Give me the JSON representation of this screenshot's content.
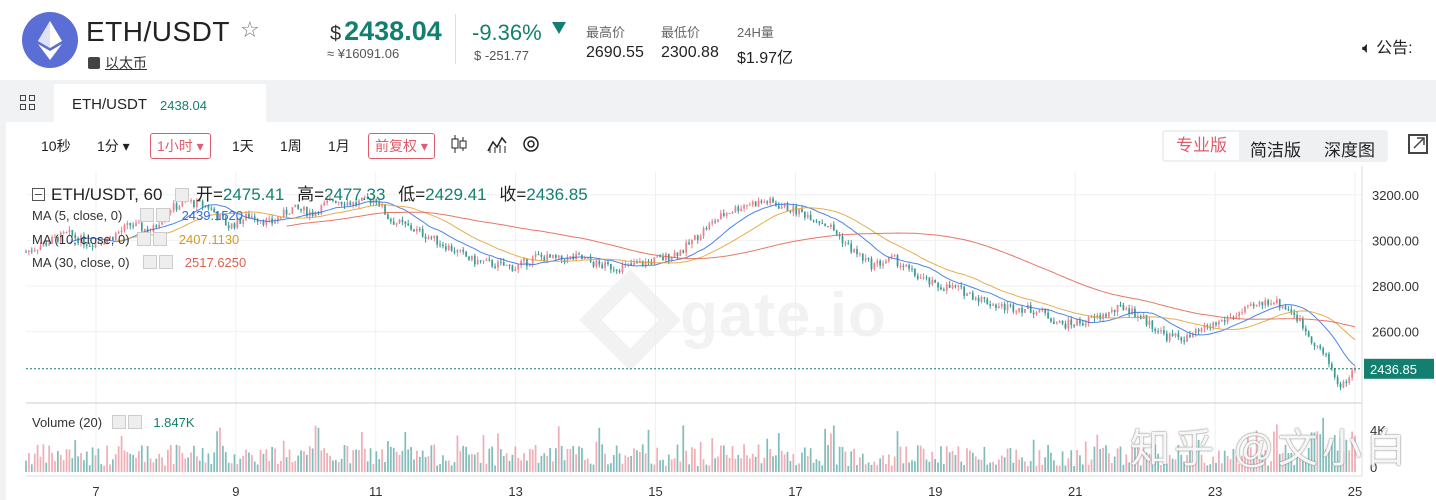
{
  "header": {
    "pair": "ETH/USDT",
    "coin_name": "以太币",
    "price_currency": "$",
    "price": "2438.04",
    "price_cny": "≈ ¥16091.06",
    "change_pct": "-9.36%",
    "change_abs": "$ -251.77",
    "high_label": "最高价",
    "high_value": "2690.55",
    "low_label": "最低价",
    "low_value": "2300.88",
    "vol_label": "24H量",
    "vol_value": "$1.97亿",
    "notice": "公告:"
  },
  "tab": {
    "label": "ETH/USDT",
    "price": "2438.04"
  },
  "toolbar": {
    "intervals": [
      "10秒",
      "1分",
      "1小时",
      "1天",
      "1周",
      "1月"
    ],
    "adjust": "前复权",
    "views": [
      "专业版",
      "简洁版",
      "深度图"
    ]
  },
  "legend": {
    "title": "ETH/USDT, 60",
    "open_label": "开=",
    "open": "2475.41",
    "high_label": "高=",
    "high": "2477.33",
    "low_label": "低=",
    "low": "2429.41",
    "close_label": "收=",
    "close": "2436.85",
    "ma5": "MA (5, close, 0)",
    "ma5_value": "2439.1520",
    "ma10": "MA (10, close, 0)",
    "ma10_value": "2407.1130",
    "ma30": "MA (30, close, 0)",
    "ma30_value": "2517.6250",
    "volume": "Volume (20)",
    "volume_value": "1.847K"
  },
  "watermark": "知乎 @文小白",
  "brand_watermark": "gate.io",
  "colors": {
    "up": "#e8828f",
    "down": "#3d9b96",
    "ma5": "#2b6ee5",
    "ma10": "#e0a030",
    "ma30": "#e0604d",
    "accent": "#137f6f"
  },
  "chart_data": {
    "type": "candlestick",
    "title": "ETH/USDT, 60",
    "x_ticks": [
      "7",
      "9",
      "11",
      "13",
      "15",
      "17",
      "19",
      "21",
      "23",
      "25"
    ],
    "y_ticks": [
      "3200.00",
      "3000.00",
      "2800.00",
      "2600.00"
    ],
    "last_price_label": "2436.85",
    "ylim": [
      2300,
      3300
    ],
    "volume_ticks": [
      "4K",
      "0"
    ],
    "close_path": [
      [
        6.0,
        2950
      ],
      [
        6.3,
        2990
      ],
      [
        6.6,
        3030
      ],
      [
        6.9,
        2985
      ],
      [
        7.2,
        3010
      ],
      [
        7.5,
        3070
      ],
      [
        7.8,
        3040
      ],
      [
        8.0,
        3130
      ],
      [
        8.3,
        3170
      ],
      [
        8.6,
        3150
      ],
      [
        8.9,
        3060
      ],
      [
        9.2,
        3110
      ],
      [
        9.5,
        3075
      ],
      [
        9.8,
        3140
      ],
      [
        10.1,
        3120
      ],
      [
        10.4,
        3180
      ],
      [
        10.7,
        3160
      ],
      [
        11.0,
        3185
      ],
      [
        11.2,
        3090
      ],
      [
        11.5,
        3055
      ],
      [
        11.8,
        3010
      ],
      [
        12.1,
        2960
      ],
      [
        12.4,
        2910
      ],
      [
        12.7,
        2895
      ],
      [
        13.0,
        2880
      ],
      [
        13.3,
        2930
      ],
      [
        13.6,
        2915
      ],
      [
        13.9,
        2925
      ],
      [
        14.2,
        2890
      ],
      [
        14.5,
        2880
      ],
      [
        14.8,
        2900
      ],
      [
        15.1,
        2920
      ],
      [
        15.4,
        2960
      ],
      [
        15.7,
        3050
      ],
      [
        16.0,
        3120
      ],
      [
        16.3,
        3160
      ],
      [
        16.6,
        3170
      ],
      [
        16.9,
        3140
      ],
      [
        17.2,
        3110
      ],
      [
        17.5,
        3060
      ],
      [
        17.8,
        2960
      ],
      [
        18.1,
        2890
      ],
      [
        18.4,
        2920
      ],
      [
        18.7,
        2850
      ],
      [
        19.0,
        2800
      ],
      [
        19.3,
        2790
      ],
      [
        19.6,
        2750
      ],
      [
        19.9,
        2710
      ],
      [
        20.2,
        2705
      ],
      [
        20.5,
        2690
      ],
      [
        20.8,
        2630
      ],
      [
        21.1,
        2640
      ],
      [
        21.4,
        2670
      ],
      [
        21.7,
        2710
      ],
      [
        22.0,
        2650
      ],
      [
        22.3,
        2580
      ],
      [
        22.6,
        2570
      ],
      [
        22.9,
        2620
      ],
      [
        23.2,
        2660
      ],
      [
        23.5,
        2700
      ],
      [
        23.8,
        2740
      ],
      [
        24.1,
        2690
      ],
      [
        24.4,
        2560
      ],
      [
        24.6,
        2480
      ],
      [
        24.8,
        2350
      ],
      [
        24.95,
        2420
      ],
      [
        25.0,
        2437
      ]
    ],
    "series": [
      {
        "name": "MA (5, close, 0)",
        "last": 2439.152
      },
      {
        "name": "MA (10, close, 0)",
        "last": 2407.113
      },
      {
        "name": "MA (30, close, 0)",
        "last": 2517.625
      },
      {
        "name": "Volume (20)",
        "last": "1.847K"
      }
    ]
  }
}
